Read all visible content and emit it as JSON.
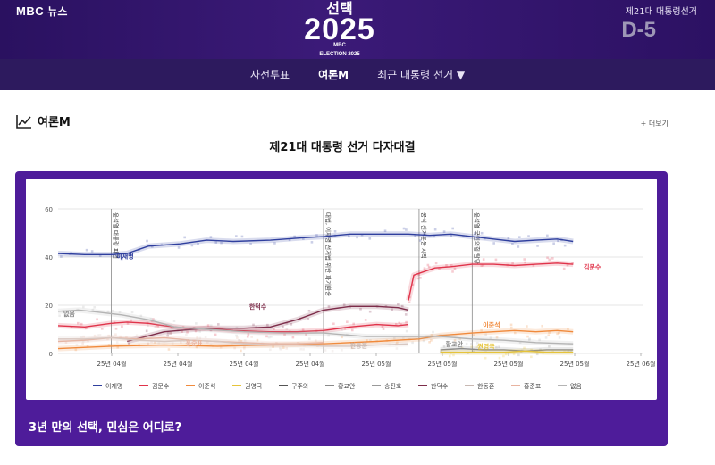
{
  "header": {
    "brand_logo": "MBC",
    "brand_text": "뉴스",
    "logo_title": "선택",
    "logo_year": "2025",
    "logo_mbc": "MBC",
    "logo_sub": "ELECTION 2025",
    "dday_label": "제21대 대통령선거",
    "dday_value": "D-5"
  },
  "nav": {
    "items": [
      {
        "label": "사전투표"
      },
      {
        "label": "여론M"
      },
      {
        "label": "최근 대통령 선거 ▼"
      }
    ]
  },
  "section": {
    "title": "여론M",
    "icon": "chart-icon",
    "more_label": "+ 더보기"
  },
  "chart_title": "제21대 대통령 선거 다자대결",
  "caption": "3년 만의 선택, 민심은 어디로?",
  "chart_data": {
    "type": "line",
    "ylim": [
      0,
      60
    ],
    "yticks": [
      0,
      20,
      40,
      60
    ],
    "xticks": [
      "25년 04월",
      "25년 04월",
      "25년 04월",
      "25년 04월",
      "25년 05월",
      "25년 05월",
      "25년 05월",
      "25년 05월",
      "25년 06월"
    ],
    "events": [
      {
        "label": "윤석열 대통령 파면",
        "x": 0.1
      },
      {
        "label": "대법, 이재명 선거법 위반 파기환송",
        "x": 0.5
      },
      {
        "label": "공식 선거운동 시작",
        "x": 0.68
      },
      {
        "label": "윤석열 국민의힘 탈당",
        "x": 0.78
      }
    ],
    "series": [
      {
        "name": "이재명",
        "color": "#2f3f9e",
        "x": [
          0,
          0.05,
          0.1,
          0.13,
          0.17,
          0.23,
          0.28,
          0.33,
          0.4,
          0.46,
          0.5,
          0.55,
          0.6,
          0.66,
          0.7,
          0.74,
          0.78,
          0.82,
          0.86,
          0.9,
          0.94,
          0.97
        ],
        "y": [
          41.5,
          41,
          41,
          41.5,
          44.5,
          45.5,
          47,
          46.5,
          47,
          48,
          48.5,
          49.5,
          49.5,
          49.5,
          49,
          49.5,
          48.5,
          47.5,
          46.5,
          47,
          47.5,
          46.5
        ]
      },
      {
        "name": "김문수",
        "color": "#e0334a",
        "x": [
          0.66,
          0.67,
          0.69,
          0.71,
          0.74,
          0.78,
          0.82,
          0.86,
          0.9,
          0.94,
          0.97
        ],
        "y": [
          22,
          32.5,
          34,
          35.5,
          36,
          37,
          37,
          36.5,
          37,
          37.5,
          37
        ]
      },
      {
        "name": "김문수 (경선 전)",
        "color": "#e0334a",
        "x": [
          0,
          0.05,
          0.1,
          0.13,
          0.17,
          0.2,
          0.24,
          0.28,
          0.33,
          0.4,
          0.45,
          0.5,
          0.55,
          0.6,
          0.64,
          0.66
        ],
        "y": [
          11.5,
          11,
          12.5,
          13,
          12.5,
          11.5,
          10.5,
          10.5,
          9.5,
          9,
          9,
          9.5,
          11,
          12,
          11.5,
          12
        ]
      },
      {
        "name": "이준석",
        "color": "#f08a3c",
        "x": [
          0,
          0.1,
          0.2,
          0.3,
          0.4,
          0.5,
          0.6,
          0.68,
          0.72,
          0.78,
          0.82,
          0.86,
          0.9,
          0.94,
          0.97
        ],
        "y": [
          2,
          3,
          3.5,
          3,
          3.5,
          4,
          5,
          6,
          7.5,
          8.5,
          9,
          9.5,
          9,
          9.5,
          9
        ]
      },
      {
        "name": "한덕수",
        "color": "#7d2d4a",
        "x": [
          0.13,
          0.2,
          0.28,
          0.35,
          0.4,
          0.45,
          0.5,
          0.55,
          0.6,
          0.64,
          0.66
        ],
        "y": [
          5,
          9,
          10.5,
          10.5,
          11,
          14,
          18,
          19.5,
          19.5,
          19,
          18
        ]
      },
      {
        "name": "홍준표",
        "color": "#e8b3a0",
        "x": [
          0,
          0.05,
          0.1,
          0.15,
          0.2,
          0.25,
          0.3,
          0.35,
          0.4,
          0.45,
          0.5
        ],
        "y": [
          5,
          5.5,
          6.5,
          6,
          6.5,
          5.5,
          5,
          4.5,
          4,
          4,
          4.5
        ]
      },
      {
        "name": "한동훈",
        "color": "#d8c8c2",
        "x": [
          0,
          0.05,
          0.1,
          0.15,
          0.2,
          0.25,
          0.3,
          0.35,
          0.4,
          0.45,
          0.5,
          0.55,
          0.6,
          0.66
        ],
        "y": [
          6,
          6,
          6.5,
          5.5,
          5,
          5.5,
          5,
          4,
          3.5,
          3.5,
          3,
          3,
          3.5,
          4
        ]
      },
      {
        "name": "없음",
        "color": "#b4b4b4",
        "x": [
          0,
          0.04,
          0.08,
          0.12,
          0.17,
          0.22,
          0.28,
          0.35,
          0.42,
          0.5,
          0.58,
          0.65,
          0.68,
          0.72,
          0.78,
          0.84,
          0.9,
          0.97
        ],
        "y": [
          17.5,
          18,
          17,
          16,
          14,
          11,
          10,
          9,
          8.5,
          8.5,
          7,
          7,
          7,
          7,
          6,
          5.5,
          4.5,
          4
        ]
      },
      {
        "name": "황교안",
        "color": "#8a8a8a",
        "x": [
          0.72,
          0.76,
          0.8,
          0.84,
          0.88,
          0.92,
          0.97
        ],
        "y": [
          1.5,
          2,
          1.5,
          1.5,
          1,
          1.5,
          1.5
        ]
      },
      {
        "name": "권영국",
        "color": "#e6c43a",
        "x": [
          0.72,
          0.76,
          0.8,
          0.84,
          0.88,
          0.92,
          0.97
        ],
        "y": [
          0.5,
          0.5,
          0.5,
          0.5,
          1,
          0.5,
          0.5
        ]
      }
    ],
    "line_labels": [
      {
        "text": "이재명",
        "color": "#2f3f9e",
        "x": 0.11,
        "y": 39.5
      },
      {
        "text": "김문수",
        "color": "#e0334a",
        "x": 0.99,
        "y": 35
      },
      {
        "text": "한덕수",
        "color": "#7d2d4a",
        "x": 0.36,
        "y": 18.5
      },
      {
        "text": "이준석",
        "color": "#f08a3c",
        "x": 0.8,
        "y": 11
      },
      {
        "text": "없음",
        "color": "#888888",
        "x": 0.01,
        "y": 15.5
      },
      {
        "text": "홍준표",
        "color": "#e8b3a0",
        "x": 0.24,
        "y": 3.5
      },
      {
        "text": "한동훈",
        "color": "#c8b8b2",
        "x": 0.55,
        "y": 2.5
      },
      {
        "text": "황교안",
        "color": "#8a8a8a",
        "x": 0.73,
        "y": 3
      },
      {
        "text": "권영국",
        "color": "#e6c43a",
        "x": 0.79,
        "y": 2
      }
    ],
    "legend": [
      {
        "name": "이재명",
        "color": "#2f3f9e"
      },
      {
        "name": "김문수",
        "color": "#e0334a"
      },
      {
        "name": "이준석",
        "color": "#f08a3c"
      },
      {
        "name": "권영국",
        "color": "#e6c43a"
      },
      {
        "name": "구주와",
        "color": "#555555"
      },
      {
        "name": "황교안",
        "color": "#8a8a8a"
      },
      {
        "name": "송진호",
        "color": "#999999"
      },
      {
        "name": "한덕수",
        "color": "#7d2d4a"
      },
      {
        "name": "한동훈",
        "color": "#c8b8b2"
      },
      {
        "name": "홍준표",
        "color": "#e8b3a0"
      },
      {
        "name": "없음",
        "color": "#b4b4b4"
      }
    ]
  }
}
